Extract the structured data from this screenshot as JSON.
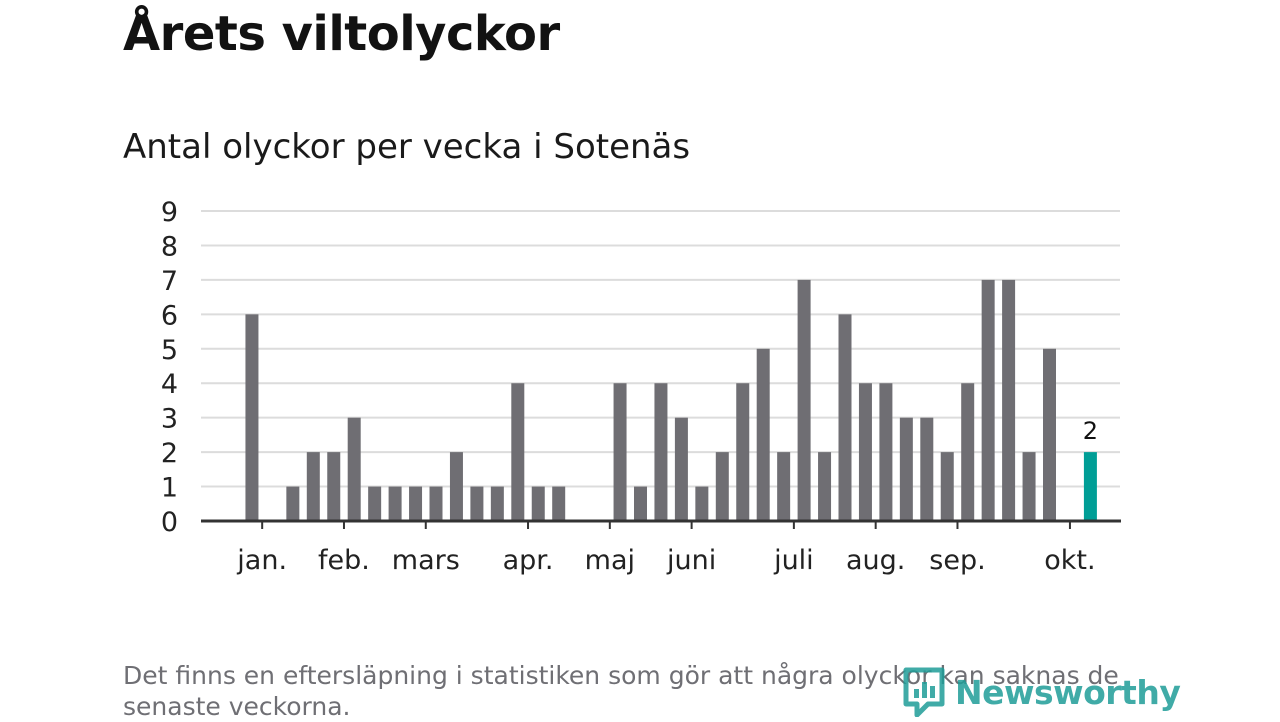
{
  "title": "Årets viltolyckor",
  "subtitle": "Antal olyckor per vecka i Sotenäs",
  "footnote": "Det finns en eftersläpning i statistiken som gör att några olyckor kan saknas de senaste veckorna.",
  "logo_text": "Newsworthy",
  "colors": {
    "bar": "#6f6e73",
    "highlight": "#009e96",
    "grid": "#dcdcdc",
    "axis": "#333333",
    "logo": "#1f9d98"
  },
  "chart_data": {
    "type": "bar",
    "ylim": [
      0,
      9
    ],
    "y_ticks": [
      "0",
      "1",
      "2",
      "3",
      "4",
      "5",
      "6",
      "7",
      "8",
      "9"
    ],
    "grid": true,
    "x_unit": "week",
    "weeks": [
      1,
      2,
      3,
      4,
      5,
      6,
      7,
      8,
      9,
      10,
      11,
      12,
      13,
      14,
      15,
      16,
      17,
      18,
      19,
      20,
      21,
      22,
      23,
      24,
      25,
      26,
      27,
      28,
      29,
      30,
      31,
      32,
      33,
      34,
      35,
      36,
      37,
      38,
      39,
      40,
      41,
      42,
      43,
      44,
      45,
      46
    ],
    "values": [
      0,
      6,
      0,
      1,
      2,
      2,
      3,
      1,
      1,
      1,
      1,
      2,
      1,
      1,
      4,
      1,
      1,
      0,
      0,
      4,
      1,
      4,
      3,
      1,
      2,
      4,
      5,
      2,
      7,
      2,
      6,
      4,
      4,
      3,
      3,
      2,
      4,
      7,
      7,
      2,
      5,
      0,
      2,
      0,
      0,
      0
    ],
    "highlight_week": 43,
    "annotations": [
      {
        "week": 43,
        "label": "2"
      }
    ],
    "month_labels": [
      {
        "label": "jan.",
        "week": 2.5
      },
      {
        "label": "feb.",
        "week": 6.5
      },
      {
        "label": "mars",
        "week": 10.5
      },
      {
        "label": "apr.",
        "week": 15.5
      },
      {
        "label": "maj",
        "week": 19.5
      },
      {
        "label": "juni",
        "week": 23.5
      },
      {
        "label": "juli",
        "week": 28.5
      },
      {
        "label": "aug.",
        "week": 32.5
      },
      {
        "label": "sep.",
        "week": 36.5
      },
      {
        "label": "okt.",
        "week": 42.0
      }
    ]
  }
}
